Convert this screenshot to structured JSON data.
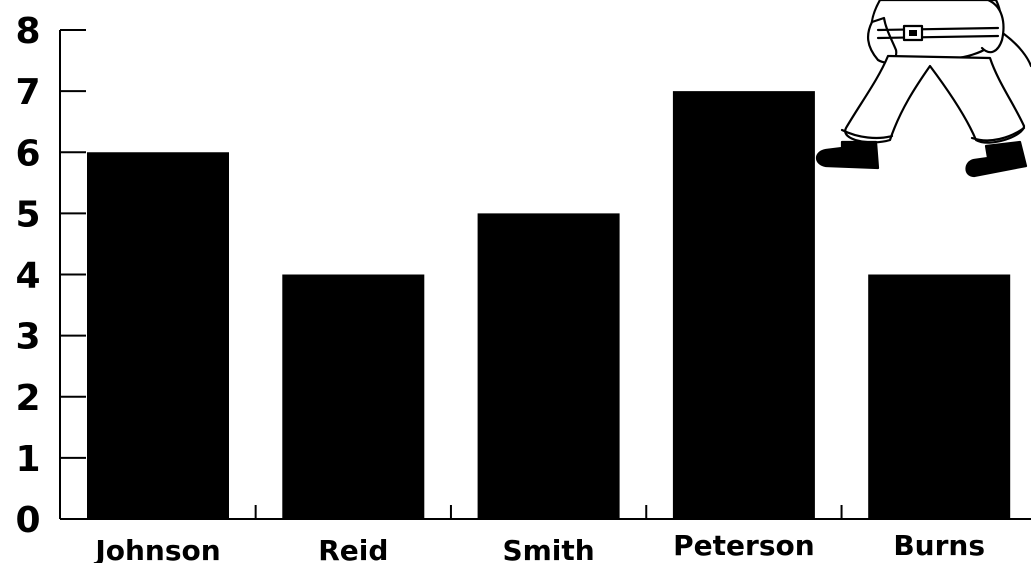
{
  "chart_data": {
    "type": "bar",
    "title": "",
    "xlabel": "",
    "ylabel": "",
    "categories": [
      "Johnson",
      "Reid",
      "Smith",
      "Peterson",
      "Burns"
    ],
    "values": [
      6,
      4,
      5,
      7,
      4
    ],
    "ylim": [
      0,
      8
    ],
    "yticks": [
      "0",
      "1",
      "2",
      "3",
      "4",
      "5",
      "6",
      "7",
      "8"
    ],
    "grid": false,
    "bar_color": "#000000",
    "decoration_icon": "firefighter-figure-icon"
  }
}
